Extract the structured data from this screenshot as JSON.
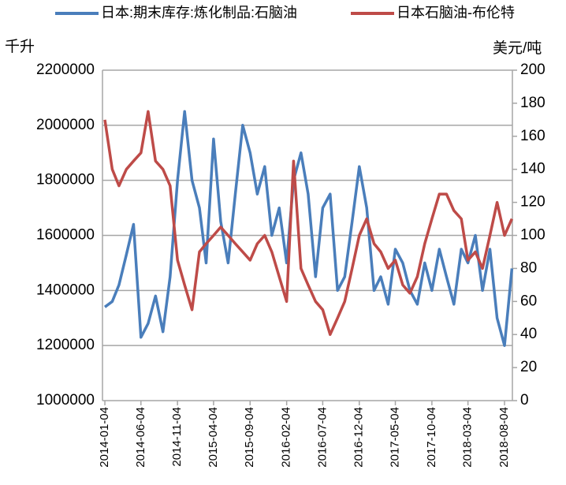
{
  "chart_data": {
    "type": "line",
    "y_label": "千升",
    "y2_label": "美元/吨",
    "x": [
      "2014-01-04",
      "2014-02-04",
      "2014-03-04",
      "2014-04-04",
      "2014-05-04",
      "2014-06-04",
      "2014-07-04",
      "2014-08-04",
      "2014-09-04",
      "2014-10-04",
      "2014-11-04",
      "2014-12-04",
      "2015-01-04",
      "2015-02-04",
      "2015-03-04",
      "2015-04-04",
      "2015-05-04",
      "2015-06-04",
      "2015-07-04",
      "2015-08-04",
      "2015-09-04",
      "2015-10-04",
      "2015-11-04",
      "2015-12-04",
      "2016-01-04",
      "2016-02-04",
      "2016-03-04",
      "2016-04-04",
      "2016-05-04",
      "2016-06-04",
      "2016-07-04",
      "2016-08-04",
      "2016-09-04",
      "2016-10-04",
      "2016-11-04",
      "2016-12-04",
      "2017-01-04",
      "2017-02-04",
      "2017-03-04",
      "2017-04-04",
      "2017-05-04",
      "2017-06-04",
      "2017-07-04",
      "2017-08-04",
      "2017-09-04",
      "2017-10-04",
      "2017-11-04",
      "2017-12-04",
      "2018-01-04",
      "2018-02-04",
      "2018-03-04",
      "2018-04-04",
      "2018-05-04",
      "2018-06-04",
      "2018-07-04",
      "2018-08-04",
      "2018-09-04"
    ],
    "series": [
      {
        "name": "日本:期末库存:炼化制品:石脑油",
        "color": "#4a7ebb",
        "axis": "y",
        "values": [
          1340000,
          1360000,
          1420000,
          1530000,
          1640000,
          1230000,
          1280000,
          1380000,
          1250000,
          1450000,
          1800000,
          2050000,
          1800000,
          1700000,
          1500000,
          1950000,
          1650000,
          1500000,
          1750000,
          2000000,
          1900000,
          1750000,
          1850000,
          1600000,
          1700000,
          1500000,
          1800000,
          1900000,
          1750000,
          1450000,
          1700000,
          1750000,
          1400000,
          1450000,
          1650000,
          1850000,
          1700000,
          1400000,
          1450000,
          1350000,
          1550000,
          1500000,
          1400000,
          1350000,
          1500000,
          1400000,
          1550000,
          1450000,
          1350000,
          1550000,
          1500000,
          1600000,
          1400000,
          1550000,
          1300000,
          1200000,
          1480000
        ]
      },
      {
        "name": "日本石脑油-布伦特",
        "color": "#be4b48",
        "axis": "y2",
        "values": [
          170,
          140,
          130,
          140,
          145,
          150,
          175,
          145,
          140,
          130,
          85,
          70,
          55,
          90,
          95,
          100,
          105,
          100,
          95,
          90,
          85,
          95,
          100,
          90,
          75,
          60,
          145,
          80,
          70,
          60,
          55,
          40,
          50,
          60,
          80,
          100,
          110,
          95,
          90,
          80,
          85,
          70,
          65,
          75,
          95,
          110,
          125,
          125,
          115,
          110,
          85,
          90,
          80,
          100,
          120,
          100,
          110
        ]
      }
    ],
    "xlim": [
      "2013-12-25",
      "2018-09-06"
    ],
    "xticks": [
      "2014-01-04",
      "2014-06-04",
      "2014-11-04",
      "2015-04-04",
      "2015-09-04",
      "2016-02-04",
      "2016-07-04",
      "2016-12-04",
      "2017-05-04",
      "2017-10-04",
      "2018-03-04",
      "2018-08-04"
    ],
    "ylim": [
      1000000,
      2200000
    ],
    "yticks": [
      1000000,
      1200000,
      1400000,
      1600000,
      1800000,
      2000000,
      2200000
    ],
    "y2lim": [
      0,
      200
    ],
    "y2ticks": [
      0,
      20,
      40,
      60,
      80,
      100,
      120,
      140,
      160,
      180,
      200
    ],
    "grid": true
  }
}
